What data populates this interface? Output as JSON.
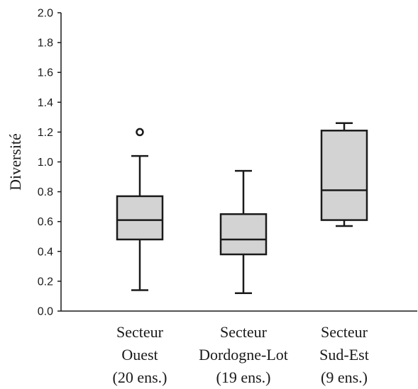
{
  "chart_data": {
    "type": "boxplot",
    "title": "",
    "ylabel": "Diversité",
    "xlabel": "",
    "ylim": [
      0,
      2.0
    ],
    "yticks": [
      "0.0",
      "0.2",
      "0.4",
      "0.6",
      "0.8",
      "1.0",
      "1.2",
      "1.4",
      "1.6",
      "1.8",
      "2.0"
    ],
    "grid": false,
    "categories": [
      {
        "lines": [
          "Secteur",
          "Ouest",
          "(20 ens.)"
        ]
      },
      {
        "lines": [
          "Secteur",
          "Dordogne-Lot",
          "(19 ens.)"
        ]
      },
      {
        "lines": [
          "Secteur",
          "Sud-Est",
          "(9 ens.)"
        ]
      }
    ],
    "boxes": [
      {
        "whisker_low": 0.14,
        "q1": 0.48,
        "median": 0.61,
        "q3": 0.77,
        "whisker_high": 1.04,
        "outliers": [
          1.2
        ]
      },
      {
        "whisker_low": 0.12,
        "q1": 0.38,
        "median": 0.48,
        "q3": 0.65,
        "whisker_high": 0.94,
        "outliers": []
      },
      {
        "whisker_low": 0.57,
        "q1": 0.61,
        "median": 0.81,
        "q3": 1.21,
        "whisker_high": 1.26,
        "outliers": []
      }
    ],
    "colors": {
      "box_fill": "#d3d3d3",
      "stroke": "#1a1a1a"
    }
  }
}
